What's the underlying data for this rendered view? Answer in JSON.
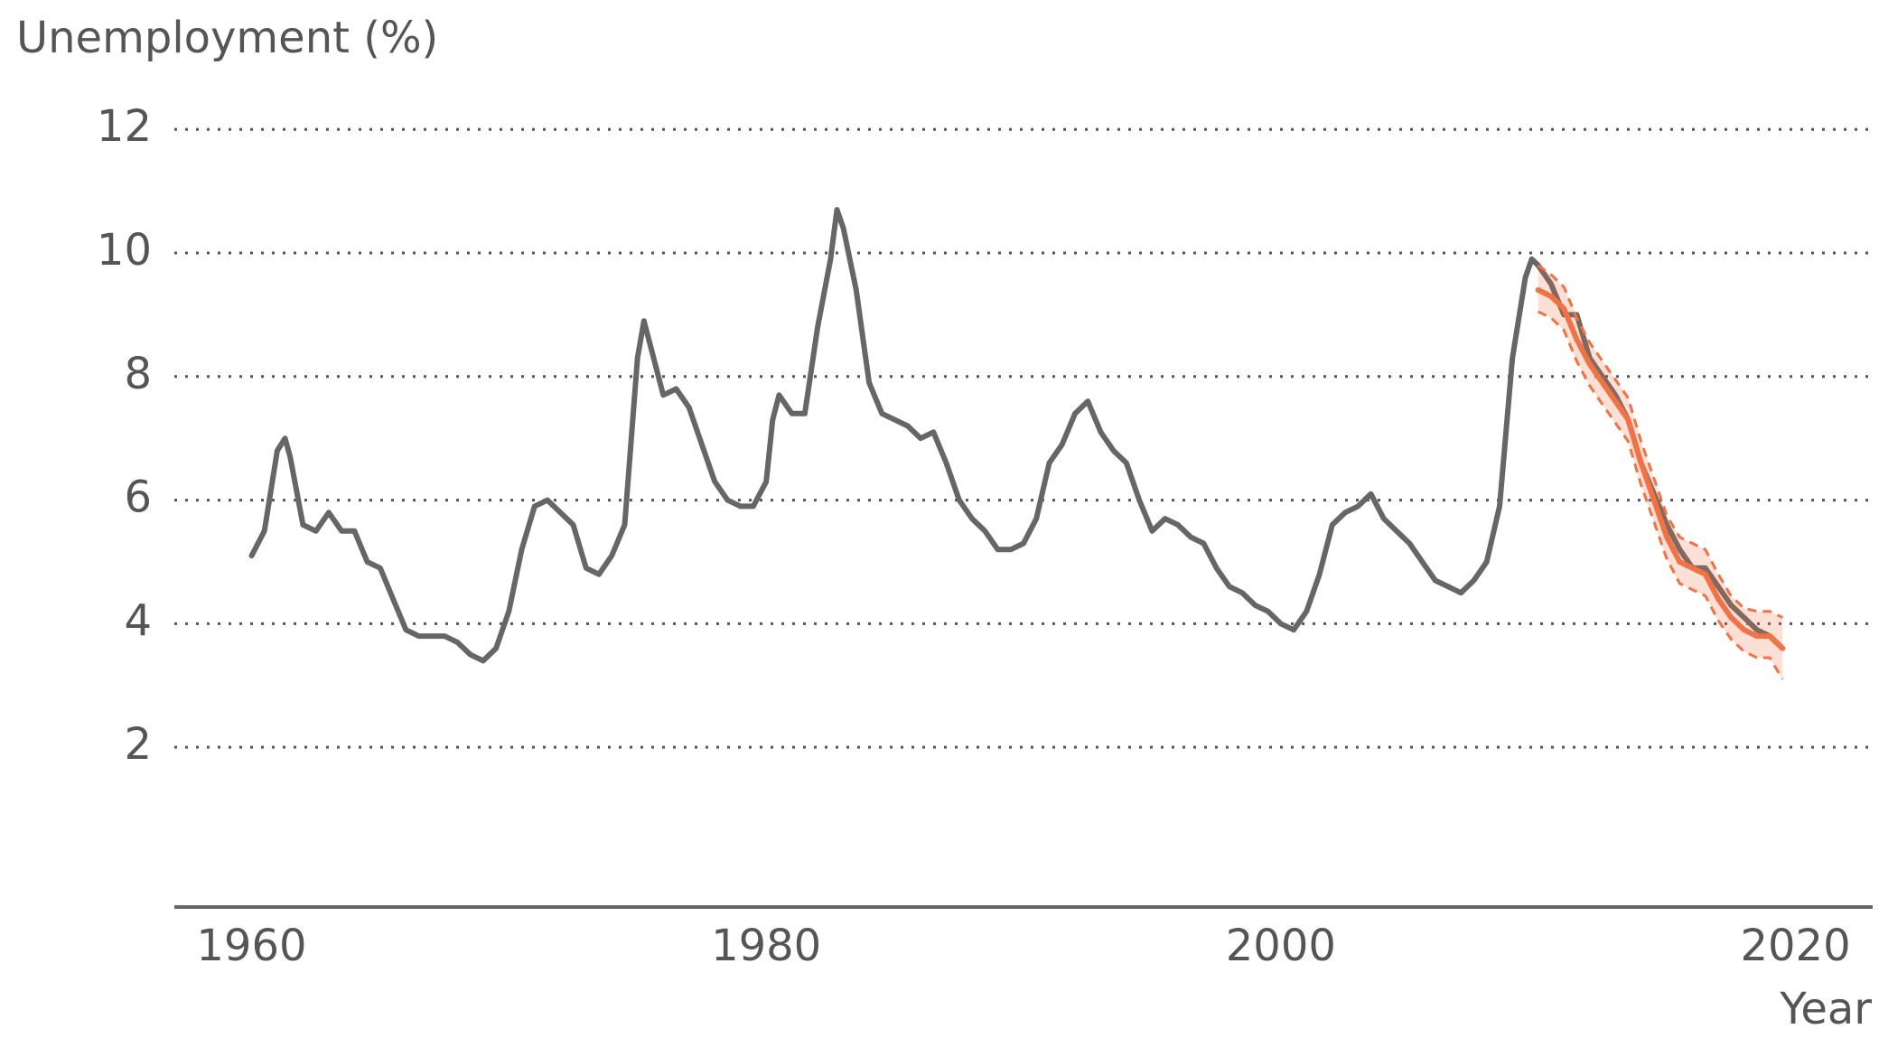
{
  "chart_data": {
    "type": "line",
    "title": "Unemployment (%)",
    "x_label": "Year",
    "xlim": [
      1957,
      2023
    ],
    "xticks": [
      1960,
      1980,
      2000,
      2020
    ],
    "ylim": [
      -0.6,
      12.5
    ],
    "yticks": [
      2,
      4,
      6,
      8,
      10,
      12
    ],
    "grid": true,
    "series": [
      {
        "color": "#666666",
        "x": [
          1960,
          1960.5,
          1961,
          1961.3,
          1961.5,
          1962,
          1962.5,
          1963,
          1963.5,
          1964,
          1964.5,
          1965,
          1965.5,
          1966,
          1966.5,
          1967,
          1967.5,
          1968,
          1968.5,
          1969,
          1969.5,
          1970,
          1970.5,
          1971,
          1971.5,
          1972,
          1972.5,
          1973,
          1973.5,
          1974,
          1974.5,
          1975,
          1975.25,
          1975.5,
          1976,
          1976.5,
          1977,
          1977.5,
          1978,
          1978.5,
          1979,
          1979.5,
          1980,
          1980.25,
          1980.5,
          1981,
          1981.5,
          1982,
          1982.5,
          1982.75,
          1983,
          1983.5,
          1984,
          1984.5,
          1985,
          1985.5,
          1986,
          1986.5,
          1987,
          1987.5,
          1988,
          1988.5,
          1989,
          1989.5,
          1990,
          1990.5,
          1991,
          1991.5,
          1992,
          1992.5,
          1993,
          1993.5,
          1994,
          1994.5,
          1995,
          1995.5,
          1996,
          1996.5,
          1997,
          1997.5,
          1998,
          1998.5,
          1999,
          1999.5,
          2000,
          2000.5,
          2001,
          2001.5,
          2002,
          2002.5,
          2003,
          2003.5,
          2004,
          2004.5,
          2005,
          2005.5,
          2006,
          2006.5,
          2007,
          2007.5,
          2008,
          2008.5,
          2009,
          2009.5,
          2009.75,
          2010,
          2010.5,
          2011,
          2011.5,
          2012,
          2012.5,
          2013,
          2013.5,
          2014,
          2014.5,
          2015,
          2015.5,
          2016,
          2016.5,
          2017,
          2017.5,
          2018,
          2018.5,
          2019,
          2019.5
        ],
        "values": [
          5.1,
          5.5,
          6.8,
          7.0,
          6.7,
          5.6,
          5.5,
          5.8,
          5.5,
          5.5,
          5.0,
          4.9,
          4.4,
          3.9,
          3.8,
          3.8,
          3.8,
          3.7,
          3.5,
          3.4,
          3.6,
          4.2,
          5.2,
          5.9,
          6.0,
          5.8,
          5.6,
          4.9,
          4.8,
          5.1,
          5.6,
          8.3,
          8.9,
          8.5,
          7.7,
          7.8,
          7.5,
          6.9,
          6.3,
          6.0,
          5.9,
          5.9,
          6.3,
          7.3,
          7.7,
          7.4,
          7.4,
          8.8,
          9.9,
          10.7,
          10.4,
          9.4,
          7.9,
          7.4,
          7.3,
          7.2,
          7.0,
          7.1,
          6.6,
          6.0,
          5.7,
          5.5,
          5.2,
          5.2,
          5.3,
          5.7,
          6.6,
          6.9,
          7.4,
          7.6,
          7.1,
          6.8,
          6.6,
          6.0,
          5.5,
          5.7,
          5.6,
          5.4,
          5.3,
          4.9,
          4.6,
          4.5,
          4.3,
          4.2,
          4.0,
          3.9,
          4.2,
          4.8,
          5.6,
          5.8,
          5.9,
          6.1,
          5.7,
          5.5,
          5.3,
          5.0,
          4.7,
          4.6,
          4.5,
          4.7,
          5.0,
          5.9,
          8.3,
          9.6,
          9.9,
          9.8,
          9.5,
          9.0,
          9.0,
          8.3,
          8.0,
          7.7,
          7.3,
          6.6,
          6.1,
          5.6,
          5.2,
          4.9,
          4.9,
          4.6,
          4.3,
          4.1,
          3.9,
          3.8,
          3.6
        ]
      },
      {
        "color": "#f07245",
        "dashed_band": true,
        "x": [
          2010,
          2010.5,
          2011,
          2011.5,
          2012,
          2012.5,
          2013,
          2013.5,
          2014,
          2014.5,
          2015,
          2015.5,
          2016,
          2016.5,
          2017,
          2017.5,
          2018,
          2018.5,
          2019,
          2019.5
        ],
        "values": [
          9.4,
          9.3,
          9.1,
          8.6,
          8.2,
          7.9,
          7.6,
          7.3,
          6.6,
          6.0,
          5.4,
          5.0,
          4.9,
          4.8,
          4.4,
          4.1,
          3.9,
          3.8,
          3.8,
          3.6
        ],
        "lower": [
          9.05,
          8.95,
          8.75,
          8.25,
          7.85,
          7.55,
          7.25,
          6.95,
          6.25,
          5.65,
          5.05,
          4.65,
          4.55,
          4.45,
          4.05,
          3.75,
          3.55,
          3.45,
          3.45,
          3.1
        ],
        "upper": [
          9.8,
          9.65,
          9.45,
          8.95,
          8.55,
          8.25,
          7.95,
          7.65,
          6.95,
          6.35,
          5.75,
          5.4,
          5.3,
          5.2,
          4.8,
          4.45,
          4.25,
          4.2,
          4.2,
          4.1
        ]
      }
    ]
  }
}
